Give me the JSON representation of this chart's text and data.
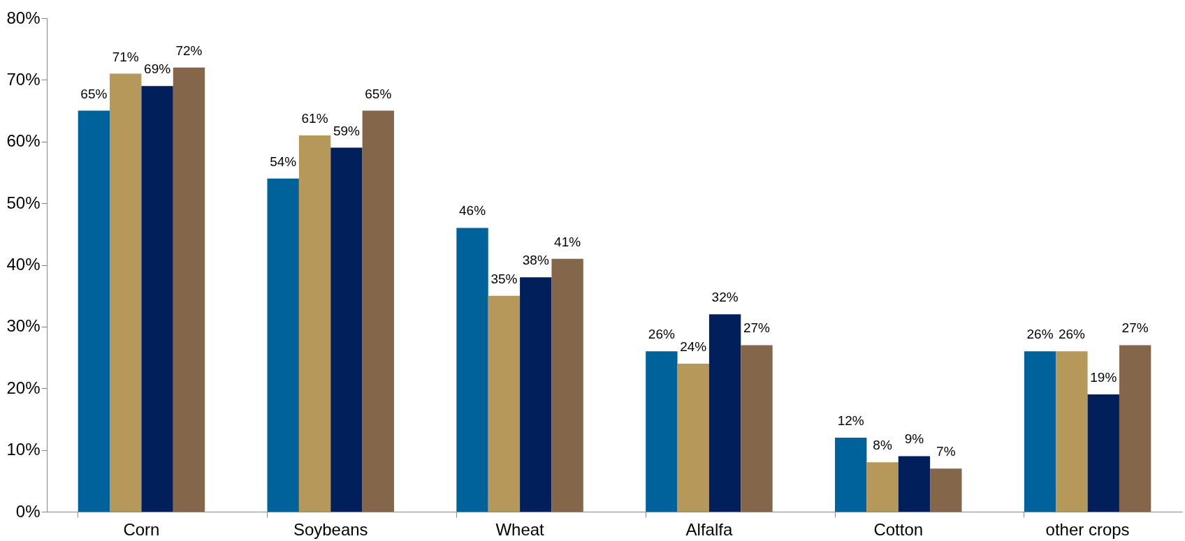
{
  "chart_data": {
    "type": "bar",
    "categories": [
      "Corn",
      "Soybeans",
      "Wheat",
      "Alfalfa",
      "Cotton",
      "other crops"
    ],
    "series": [
      {
        "color": "#00629b",
        "values": [
          65,
          54,
          46,
          26,
          12,
          26
        ],
        "value_labels": [
          "65%",
          "54%",
          "46%",
          "26%",
          "12%",
          "26%"
        ]
      },
      {
        "color": "#b5985a",
        "values": [
          71,
          61,
          35,
          24,
          8,
          26
        ],
        "value_labels": [
          "71%",
          "61%",
          "35%",
          "24%",
          "8%",
          "26%"
        ]
      },
      {
        "color": "#001f5b",
        "values": [
          69,
          59,
          38,
          32,
          9,
          19
        ],
        "value_labels": [
          "69%",
          "59%",
          "38%",
          "32%",
          "9%",
          "19%"
        ]
      },
      {
        "color": "#84674a",
        "values": [
          72,
          65,
          41,
          27,
          7,
          27
        ],
        "value_labels": [
          "72%",
          "65%",
          "41%",
          "27%",
          "7%",
          "27%"
        ]
      }
    ],
    "ylim": [
      0,
      80
    ],
    "yticks": [
      {
        "value": 0,
        "label": "0%"
      },
      {
        "value": 10,
        "label": "10%"
      },
      {
        "value": 20,
        "label": "20%"
      },
      {
        "value": 30,
        "label": "30%"
      },
      {
        "value": 40,
        "label": "40%"
      },
      {
        "value": 50,
        "label": "50%"
      },
      {
        "value": 60,
        "label": "60%"
      },
      {
        "value": 70,
        "label": "70%"
      },
      {
        "value": 80,
        "label": "80%"
      }
    ],
    "grid": false,
    "legend": false
  }
}
